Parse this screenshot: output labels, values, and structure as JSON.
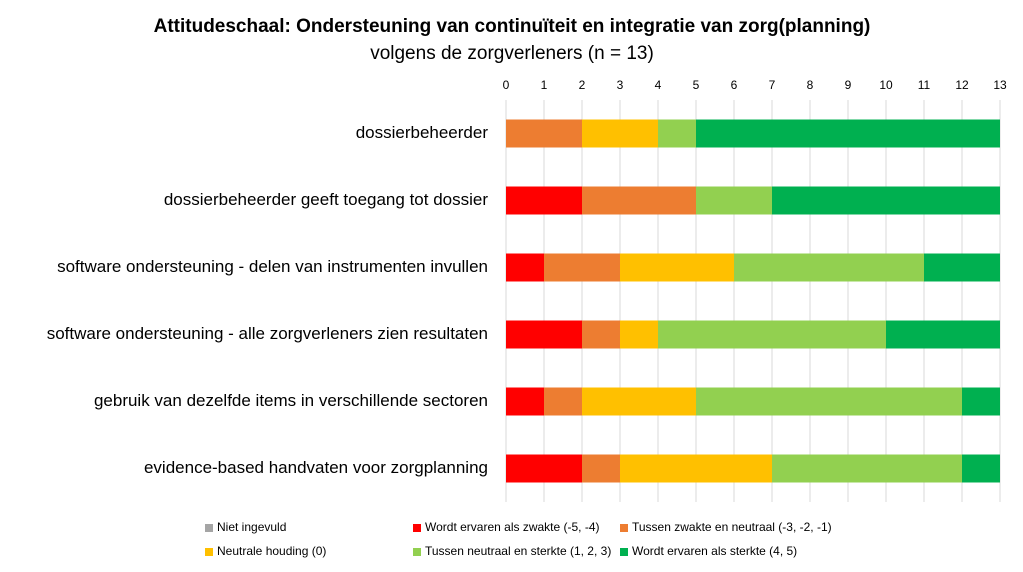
{
  "chart_data": {
    "type": "stacked-bar-horizontal",
    "title": "Attitudeschaal: Ondersteuning van continuïteit en integratie van zorg(planning)",
    "subtitle": "volgens de zorgverleners (n = 13)",
    "categories": [
      "dossierbeheerder",
      "dossierbeheerder geeft toegang tot dossier",
      "software ondersteuning - delen van instrumenten invullen",
      "software ondersteuning - alle zorgverleners zien resultaten",
      "gebruik van dezelfde items in verschillende sectoren",
      "evidence-based handvaten voor zorgplanning"
    ],
    "series": [
      {
        "name": "Niet ingevuld",
        "color": "#a5a5a5",
        "values": [
          0,
          0,
          0,
          0,
          0,
          0
        ]
      },
      {
        "name": "Wordt ervaren als zwakte (-5, -4)",
        "color": "#ff0000",
        "values": [
          0,
          2,
          1,
          2,
          1,
          2
        ]
      },
      {
        "name": "Tussen zwakte en neutraal (-3, -2, -1)",
        "color": "#ed7d31",
        "values": [
          2,
          3,
          2,
          1,
          1,
          1
        ]
      },
      {
        "name": "Neutrale houding (0)",
        "color": "#ffc000",
        "values": [
          2,
          0,
          3,
          1,
          3,
          4
        ]
      },
      {
        "name": "Tussen neutraal en sterkte (1, 2, 3)",
        "color": "#92d050",
        "values": [
          1,
          2,
          5,
          6,
          7,
          5
        ]
      },
      {
        "name": "Wordt ervaren als sterkte (4, 5)",
        "color": "#00b050",
        "values": [
          8,
          6,
          2,
          3,
          1,
          1
        ]
      }
    ],
    "xlim": [
      0,
      13
    ],
    "xticks": [
      0,
      1,
      2,
      3,
      4,
      5,
      6,
      7,
      8,
      9,
      10,
      11,
      12,
      13
    ],
    "grid": true,
    "legend": "bottom"
  }
}
